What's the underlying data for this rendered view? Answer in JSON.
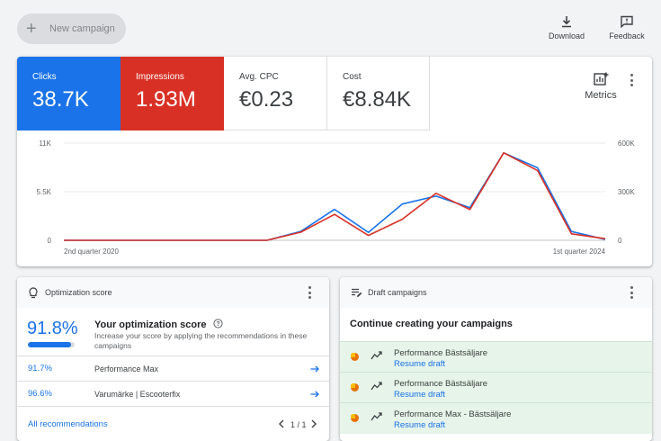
{
  "toolbar": {
    "new_campaign_label": "New campaign",
    "download_label": "Download",
    "feedback_label": "Feedback"
  },
  "metrics": [
    {
      "label": "Clicks",
      "value": "38.7K",
      "color": "#1a73e8"
    },
    {
      "label": "Impressions",
      "value": "1.93M",
      "color": "#d93025"
    },
    {
      "label": "Avg. CPC",
      "value": "€0.23"
    },
    {
      "label": "Cost",
      "value": "€8.84K"
    }
  ],
  "metrics_button_label": "Metrics",
  "chart_data": {
    "type": "line",
    "x_tick_labels": [
      "2nd quarter 2020",
      "1st quarter 2024"
    ],
    "y_left_ticks": [
      "0",
      "5.5K",
      "11K"
    ],
    "y_right_ticks": [
      "0",
      "300K",
      "600K"
    ],
    "ylim_left": [
      0,
      11000
    ],
    "ylim_right": [
      0,
      600000
    ],
    "grid": true,
    "series": [
      {
        "name": "Clicks",
        "axis": "left",
        "color": "#1a73e8",
        "values": [
          0,
          0,
          0,
          0,
          0,
          0,
          0,
          1000,
          3500,
          900,
          4100,
          5000,
          3700,
          9900,
          8200,
          1000,
          100
        ]
      },
      {
        "name": "Impressions",
        "axis": "right",
        "color": "#d93025",
        "values": [
          0,
          0,
          0,
          0,
          0,
          0,
          0,
          50000,
          160000,
          30000,
          130000,
          290000,
          190000,
          540000,
          430000,
          40000,
          10000
        ]
      }
    ]
  },
  "optimization": {
    "title": "Optimization score",
    "score": "91.8%",
    "score_fraction": 0.918,
    "heading": "Your optimization score",
    "description": "Increase your score by applying the recommendations in these campaigns",
    "rows": [
      {
        "score": "91.7%",
        "name": "Performance Max"
      },
      {
        "score": "96.6%",
        "name": "Varumärke | Escooterfix"
      }
    ],
    "all_link": "All recommendations",
    "pager": "1 / 1"
  },
  "drafts": {
    "title": "Draft campaigns",
    "heading": "Continue creating your campaigns",
    "items": [
      {
        "name": "Performance Bästsäljare",
        "link": "Resume draft"
      },
      {
        "name": "Performance Bästsäljare",
        "link": "Resume draft"
      },
      {
        "name": "Performance Max - Bästsäljare",
        "link": "Resume draft"
      }
    ]
  }
}
